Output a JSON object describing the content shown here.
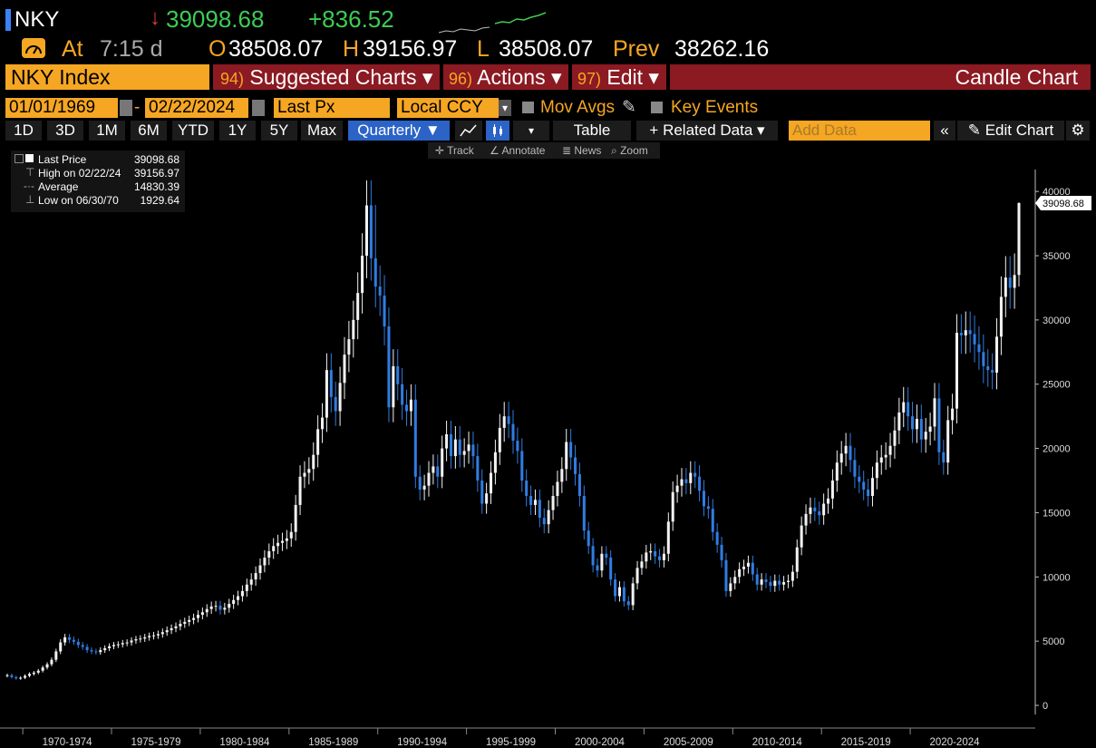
{
  "header": {
    "ticker": "NKY",
    "last_price": "39098.68",
    "net_change": "+836.52",
    "time_label": "At",
    "time_value": "7:15 d",
    "open_label": "O",
    "open": "38508.07",
    "high_label": "H",
    "high": "39156.97",
    "low_label": "L",
    "low": "38508.07",
    "prev_label": "Prev",
    "prev": "38262.16"
  },
  "menubar": {
    "security": "NKY Index",
    "suggested_num": "94)",
    "suggested": "Suggested Charts ▾",
    "actions_num": "96)",
    "actions": "Actions ▾",
    "edit_num": "97)",
    "edit": "Edit ▾",
    "title": "Candle Chart"
  },
  "controls": {
    "start_date": "01/01/1969",
    "dash": "-",
    "end_date": "02/22/2024",
    "field": "Last Px",
    "currency": "Local CCY",
    "mov_avgs": "Mov Avgs",
    "key_events": "Key Events"
  },
  "toolbar": {
    "ranges": [
      "1D",
      "3D",
      "1M",
      "6M",
      "YTD",
      "1Y",
      "5Y",
      "Max"
    ],
    "period": "Quarterly ▼",
    "table": "Table",
    "related": "+ Related Data ▾",
    "add_data_placeholder": "Add Data",
    "collapse": "«",
    "edit_chart": "Edit Chart"
  },
  "subtoolbar": {
    "track": "Track",
    "annotate": "Annotate",
    "news": "News",
    "zoom": "Zoom"
  },
  "legend": {
    "items": [
      {
        "label": "Last Price",
        "value": "39098.68"
      },
      {
        "label": "High on 02/22/24",
        "value": "39156.97"
      },
      {
        "label": "Average",
        "value": "14830.39"
      },
      {
        "label": "Low on 06/30/70",
        "value": "1929.64"
      }
    ]
  },
  "colors": {
    "up": "#f2f2f2",
    "down": "#2f7de1",
    "accent": "#f5a623",
    "bar": "#8b1a22"
  },
  "chart_data": {
    "type": "candlestick",
    "period": "quarterly",
    "last_price_label": "39098.68",
    "ylim": [
      0,
      41000
    ],
    "yticks": [
      0,
      5000,
      10000,
      15000,
      20000,
      25000,
      30000,
      35000,
      40000
    ],
    "x_groups": [
      "1970-1974",
      "1975-1979",
      "1980-1984",
      "1985-1989",
      "1990-1994",
      "1995-1999",
      "2000-2004",
      "2005-2009",
      "2010-2014",
      "2015-2019",
      "2020-2024"
    ],
    "x_start_year": 1969,
    "closes": [
      2350,
      2200,
      2100,
      2150,
      2300,
      2450,
      2550,
      2700,
      2950,
      3200,
      3550,
      4200,
      4900,
      5300,
      5100,
      4950,
      4700,
      4550,
      4300,
      4200,
      4150,
      4300,
      4450,
      4600,
      4700,
      4750,
      4850,
      4900,
      5050,
      5150,
      5200,
      5300,
      5400,
      5450,
      5550,
      5700,
      5850,
      6000,
      6150,
      6350,
      6500,
      6650,
      6800,
      7050,
      7250,
      7500,
      7700,
      7750,
      7450,
      7600,
      7900,
      8200,
      8500,
      8900,
      9400,
      9800,
      10300,
      10900,
      11500,
      12000,
      12400,
      12650,
      12800,
      13000,
      13500,
      15600,
      17800,
      18100,
      18400,
      19500,
      21500,
      22400,
      26100,
      24000,
      22900,
      25100,
      27300,
      28500,
      30000,
      32100,
      35000,
      38916,
      34800,
      32600,
      31900,
      29500,
      23200,
      26400,
      25000,
      23400,
      22900,
      23800,
      17800,
      16800,
      17100,
      18100,
      18600,
      17800,
      20000,
      21100,
      19400,
      20700,
      19500,
      19800,
      20300,
      19400,
      17500,
      15700,
      16500,
      18100,
      19700,
      21600,
      22500,
      21900,
      20600,
      19800,
      17500,
      16300,
      15600,
      16000,
      14600,
      14100,
      15200,
      16300,
      17400,
      18400,
      20500,
      19300,
      18000,
      16300,
      13600,
      12400,
      10900,
      10500,
      11800,
      11500,
      9800,
      8500,
      9200,
      8100,
      7800,
      9500,
      10700,
      11200,
      11900,
      12000,
      11600,
      11300,
      11800,
      14300,
      16600,
      17100,
      17600,
      17300,
      18100,
      17800,
      16700,
      15500,
      15300,
      13500,
      12500,
      11300,
      8900,
      9500,
      10000,
      10600,
      10800,
      11100,
      10200,
      9400,
      9800,
      9600,
      9300,
      9700,
      9400,
      9600,
      9700,
      10400,
      12300,
      14000,
      14900,
      15400,
      15100,
      14800,
      15700,
      16100,
      17500,
      18900,
      19600,
      20200,
      19100,
      17800,
      17400,
      16800,
      16300,
      17700,
      18900,
      19300,
      19500,
      20200,
      21400,
      22800,
      23600,
      22500,
      21500,
      22300,
      20700,
      21300,
      21700,
      23900,
      19700,
      18900,
      22200,
      23100,
      29000,
      28800,
      29200,
      28900,
      28100,
      27500,
      26400,
      26100,
      25900,
      28700,
      31800,
      33300,
      32500,
      33500,
      39098
    ],
    "highs_extra": {
      "1989Q4": 38957,
      "2024Q1": 39157
    }
  }
}
